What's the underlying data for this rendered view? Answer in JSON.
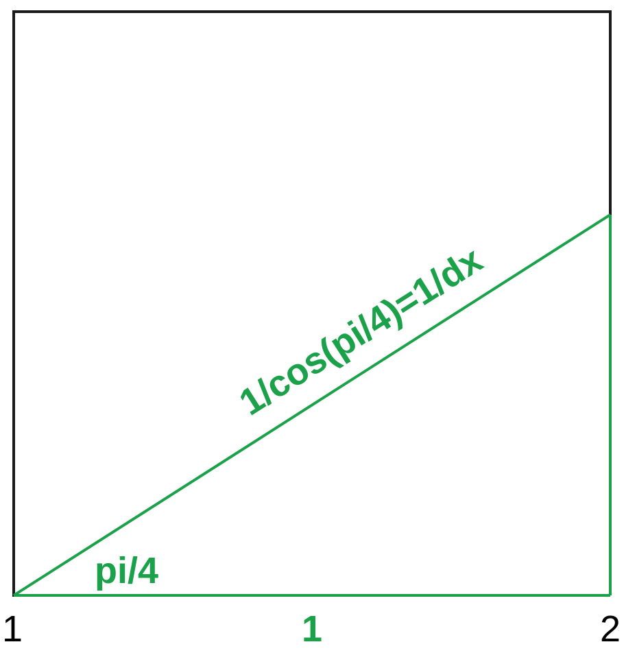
{
  "labels": {
    "hypotenuse": "1/cos(pi/4)=1/dx",
    "angle": "pi/4",
    "base": "1",
    "left_tick": "1",
    "right_tick": "2"
  },
  "colors": {
    "frame": "#1a1a1a",
    "triangle": "#1ba14a",
    "label": "#1ba14a",
    "tick": "#000000"
  }
}
